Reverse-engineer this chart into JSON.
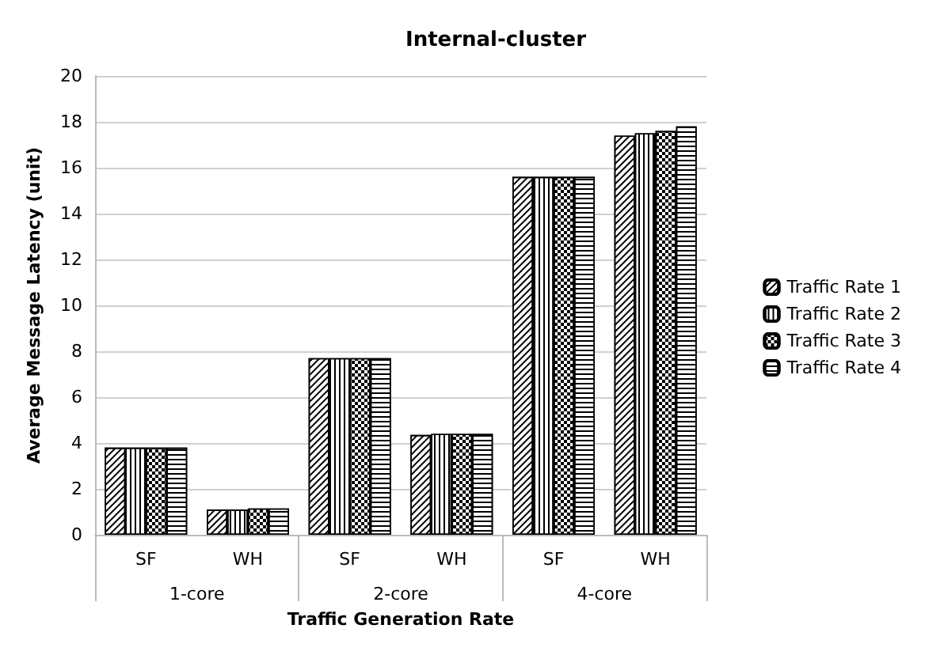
{
  "chart_data": {
    "type": "bar",
    "title": "Internal-cluster",
    "xlabel": "Traffic Generation Rate",
    "ylabel": "Average Message Latency (unit)",
    "categories": [
      "SF",
      "WH",
      "SF",
      "WH",
      "SF",
      "WH"
    ],
    "annotations": [
      "1-core",
      "2-core",
      "4-core"
    ],
    "series": [
      {
        "name": "Traffic Rate 1",
        "color": "#000000",
        "values": [
          3.8,
          1.1,
          7.7,
          4.35,
          15.6,
          17.4
        ]
      },
      {
        "name": "Traffic Rate 2",
        "color": "#000000",
        "values": [
          3.8,
          1.1,
          7.7,
          4.4,
          15.6,
          17.5
        ]
      },
      {
        "name": "Traffic Rate 3",
        "color": "#000000",
        "values": [
          3.8,
          1.15,
          7.7,
          4.4,
          15.6,
          17.6
        ]
      },
      {
        "name": "Traffic Rate 4",
        "color": "#000000",
        "values": [
          3.8,
          1.15,
          7.7,
          4.4,
          15.6,
          17.8
        ]
      }
    ],
    "ylim": [
      0,
      20
    ],
    "yticks": [
      0,
      2,
      4,
      6,
      8,
      10,
      12,
      14,
      16,
      18,
      20
    ],
    "grid": "y",
    "legend": "right"
  }
}
